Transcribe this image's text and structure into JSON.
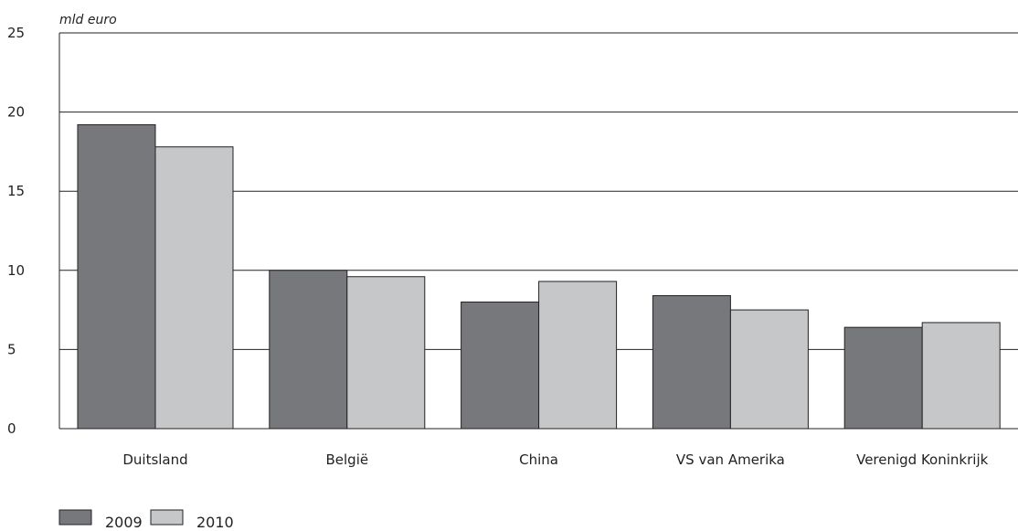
{
  "chart_data": {
    "type": "bar",
    "title": "",
    "ylabel": "mld euro",
    "xlabel": "",
    "ylim": [
      0,
      25
    ],
    "yticks": [
      0,
      5,
      10,
      15,
      20,
      25
    ],
    "grid": true,
    "legend_position": "bottom-left",
    "categories": [
      "Duitsland",
      "België",
      "China",
      "VS van Amerika",
      "Verenigd Koninkrijk"
    ],
    "series": [
      {
        "name": "2009",
        "color": "#77787c",
        "values": [
          19.2,
          10.0,
          8.0,
          8.4,
          6.4
        ]
      },
      {
        "name": "2010",
        "color": "#c6c7c9",
        "values": [
          17.8,
          9.6,
          9.3,
          7.5,
          6.7
        ]
      }
    ]
  }
}
